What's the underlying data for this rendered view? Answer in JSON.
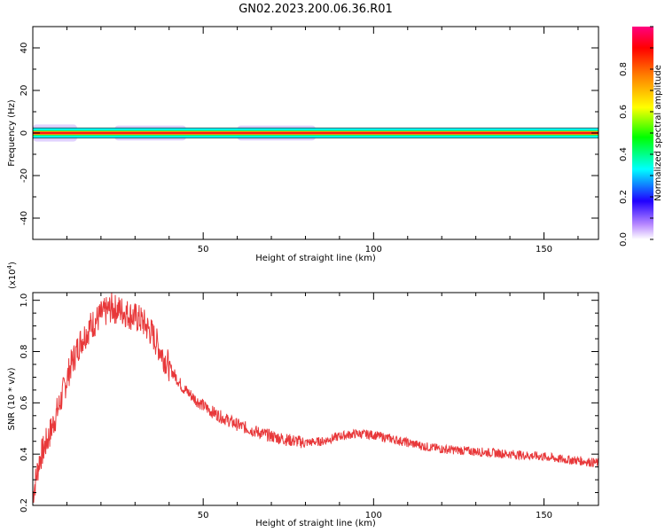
{
  "title": "GN02.2023.200.06.36.R01",
  "chart_data": [
    {
      "type": "heatmap",
      "xlabel": "Height of straight line (km)",
      "ylabel": "Frequency (Hz)",
      "xlim": [
        0,
        166
      ],
      "ylim": [
        -50,
        50
      ],
      "xticks": [
        50,
        100,
        150
      ],
      "yticks": [
        40,
        20,
        0,
        -20,
        -40
      ],
      "grid": false,
      "ridge_frequency": 0,
      "colorbar": {
        "label": "Normalized spectral amplitude",
        "range": [
          0,
          1
        ],
        "ticks": [
          0.0,
          0.2,
          0.4,
          0.6,
          0.8
        ]
      },
      "spread_segments": [
        {
          "x": [
            0,
            13
          ],
          "spread": 3
        },
        {
          "x": [
            24,
            45
          ],
          "spread": 2.5
        },
        {
          "x": [
            60,
            83
          ],
          "spread": 2.5
        },
        {
          "x": [
            120,
            164
          ],
          "spread": 1
        }
      ]
    },
    {
      "type": "line",
      "xlabel": "Height of straight line (km)",
      "ylabel": "SNR (10 * v/v)",
      "yscale_label": "(x10",
      "yscale_exp": "4",
      "yscale_close": ")",
      "xlim": [
        0,
        166
      ],
      "ylim": [
        0.2,
        1.03
      ],
      "xticks": [
        50,
        100,
        150
      ],
      "yticks": [
        "0.2",
        "0.4",
        "0.6",
        "0.8",
        "1.0"
      ],
      "ytick_values": [
        0.2,
        0.4,
        0.6,
        0.8,
        1.0
      ],
      "color": "#e8383a",
      "x": [
        0,
        2,
        5,
        8,
        11,
        14,
        17,
        20,
        23,
        26,
        29,
        32,
        35,
        38,
        41,
        44,
        48,
        52,
        56,
        60,
        65,
        70,
        75,
        80,
        85,
        90,
        95,
        100,
        105,
        110,
        115,
        120,
        125,
        130,
        135,
        140,
        145,
        150,
        155,
        160,
        166
      ],
      "values": [
        0.24,
        0.38,
        0.48,
        0.6,
        0.74,
        0.84,
        0.9,
        0.94,
        0.97,
        0.96,
        0.94,
        0.92,
        0.87,
        0.79,
        0.72,
        0.66,
        0.61,
        0.57,
        0.54,
        0.515,
        0.49,
        0.47,
        0.455,
        0.445,
        0.45,
        0.47,
        0.48,
        0.475,
        0.46,
        0.445,
        0.43,
        0.42,
        0.415,
        0.41,
        0.405,
        0.4,
        0.395,
        0.39,
        0.38,
        0.375,
        0.365
      ]
    }
  ]
}
